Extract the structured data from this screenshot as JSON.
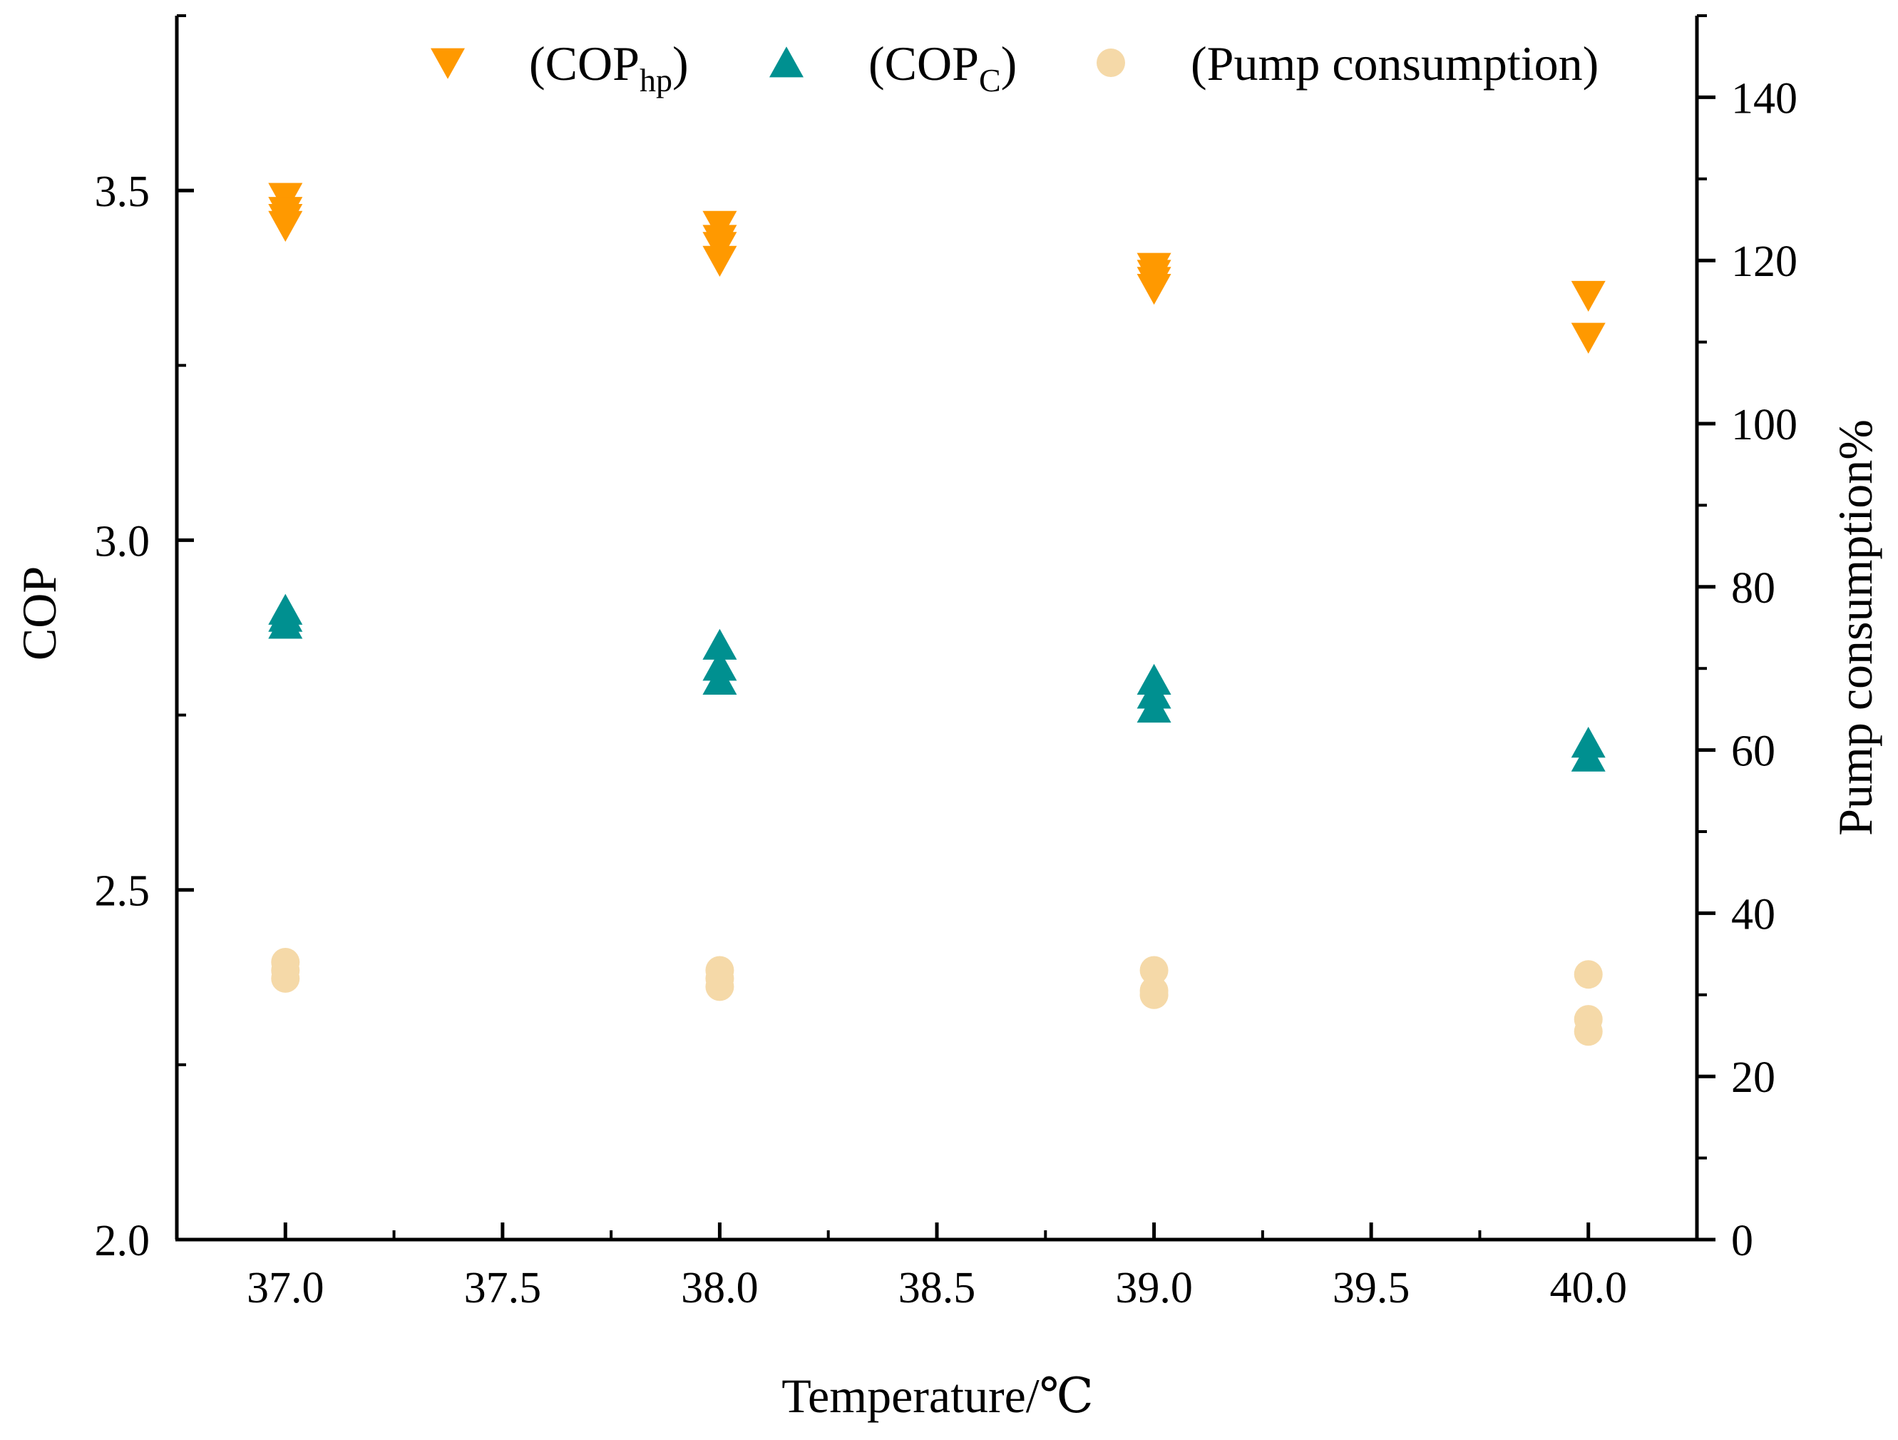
{
  "chart_data": {
    "type": "scatter",
    "title": "",
    "xlabel": "Temperature/℃",
    "ylabel_left": "COP",
    "ylabel_right": "Pump consumption%",
    "xlim": [
      36.75,
      40.25
    ],
    "ylim_left": [
      2.0,
      3.75
    ],
    "ylim_right": [
      0,
      150
    ],
    "x_ticks": [
      "37.0",
      "37.5",
      "38.0",
      "38.5",
      "39.0",
      "39.5",
      "40.0"
    ],
    "x_tick_values": [
      37.0,
      37.5,
      38.0,
      38.5,
      39.0,
      39.5,
      40.0
    ],
    "y_left_ticks": [
      "2.0",
      "2.5",
      "3.0",
      "3.5"
    ],
    "y_left_tick_values": [
      2.0,
      2.5,
      3.0,
      3.5
    ],
    "y_right_ticks": [
      "0",
      "20",
      "40",
      "60",
      "80",
      "100",
      "120",
      "140"
    ],
    "y_right_tick_values": [
      0,
      20,
      40,
      60,
      80,
      100,
      120,
      140
    ],
    "grid": false,
    "legend_position": "top",
    "series": [
      {
        "name": "COP_hp",
        "legend_main": "(COP",
        "legend_sub": "hp",
        "legend_close": ")",
        "axis": "left",
        "marker": "triangle-down",
        "color": "#FF9900",
        "x": [
          37,
          37,
          37,
          37,
          38,
          38,
          38,
          38,
          39,
          39,
          39,
          39,
          40,
          40
        ],
        "y": [
          3.49,
          3.47,
          3.46,
          3.45,
          3.45,
          3.43,
          3.42,
          3.4,
          3.39,
          3.38,
          3.37,
          3.36,
          3.35,
          3.29
        ]
      },
      {
        "name": "COP_C",
        "legend_main": "(COP",
        "legend_sub": "C",
        "legend_close": ")",
        "axis": "left",
        "marker": "triangle-up",
        "color": "#009090",
        "x": [
          37,
          37,
          37,
          38,
          38,
          38,
          39,
          39,
          39,
          40,
          40
        ],
        "y": [
          2.9,
          2.89,
          2.88,
          2.85,
          2.82,
          2.8,
          2.8,
          2.78,
          2.76,
          2.71,
          2.69
        ]
      },
      {
        "name": "Pump consumption",
        "legend_main": "(Pump consumption)",
        "axis": "right",
        "marker": "circle",
        "color": "#F5D9A8",
        "x": [
          37,
          37,
          37,
          38,
          38,
          38,
          39,
          39,
          39,
          40,
          40,
          40
        ],
        "y": [
          34,
          33,
          32,
          33,
          32,
          31,
          33,
          30.5,
          30,
          32.5,
          27,
          25.5
        ]
      }
    ]
  }
}
